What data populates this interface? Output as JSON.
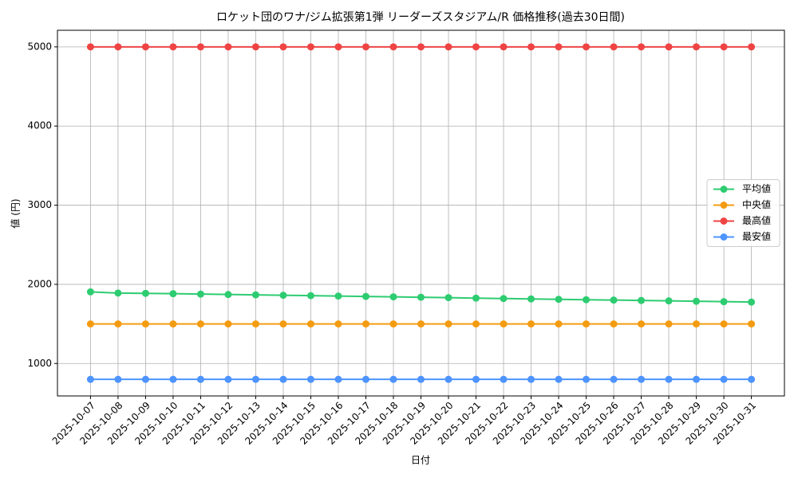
{
  "chart_data": {
    "type": "line",
    "title": "ロケット団のワナ/ジム拡張第1弾 リーダーズスタジアム/R 価格推移(過去30日間)",
    "xlabel": "日付",
    "ylabel": "値 (円)",
    "categories": [
      "2025-10-07",
      "2025-10-08",
      "2025-10-09",
      "2025-10-10",
      "2025-10-11",
      "2025-10-12",
      "2025-10-13",
      "2025-10-14",
      "2025-10-15",
      "2025-10-16",
      "2025-10-17",
      "2025-10-18",
      "2025-10-19",
      "2025-10-20",
      "2025-10-21",
      "2025-10-22",
      "2025-10-23",
      "2025-10-24",
      "2025-10-25",
      "2025-10-26",
      "2025-10-27",
      "2025-10-28",
      "2025-10-29",
      "2025-10-30",
      "2025-10-31"
    ],
    "series": [
      {
        "name": "平均値",
        "color": "#2ecc71",
        "values": [
          1905,
          1890,
          1886,
          1882,
          1877,
          1872,
          1867,
          1862,
          1857,
          1852,
          1847,
          1842,
          1837,
          1832,
          1826,
          1821,
          1816,
          1811,
          1806,
          1801,
          1796,
          1791,
          1786,
          1781,
          1776
        ]
      },
      {
        "name": "中央値",
        "color": "#f39c12",
        "values": [
          1500,
          1500,
          1500,
          1500,
          1500,
          1500,
          1500,
          1500,
          1500,
          1500,
          1500,
          1500,
          1500,
          1500,
          1500,
          1500,
          1500,
          1500,
          1500,
          1500,
          1500,
          1500,
          1500,
          1500,
          1500
        ]
      },
      {
        "name": "最高値",
        "color": "#ef4444",
        "values": [
          5000,
          5000,
          5000,
          5000,
          5000,
          5000,
          5000,
          5000,
          5000,
          5000,
          5000,
          5000,
          5000,
          5000,
          5000,
          5000,
          5000,
          5000,
          5000,
          5000,
          5000,
          5000,
          5000,
          5000,
          5000
        ]
      },
      {
        "name": "最安値",
        "color": "#4d94ff",
        "values": [
          800,
          800,
          800,
          800,
          800,
          800,
          800,
          800,
          800,
          800,
          800,
          800,
          800,
          800,
          800,
          800,
          800,
          800,
          800,
          800,
          800,
          800,
          800,
          800,
          800
        ]
      }
    ],
    "ylim": [
      590,
      5210
    ],
    "yticks": [
      1000,
      2000,
      3000,
      4000,
      5000
    ],
    "grid": true,
    "legend": "center right"
  }
}
